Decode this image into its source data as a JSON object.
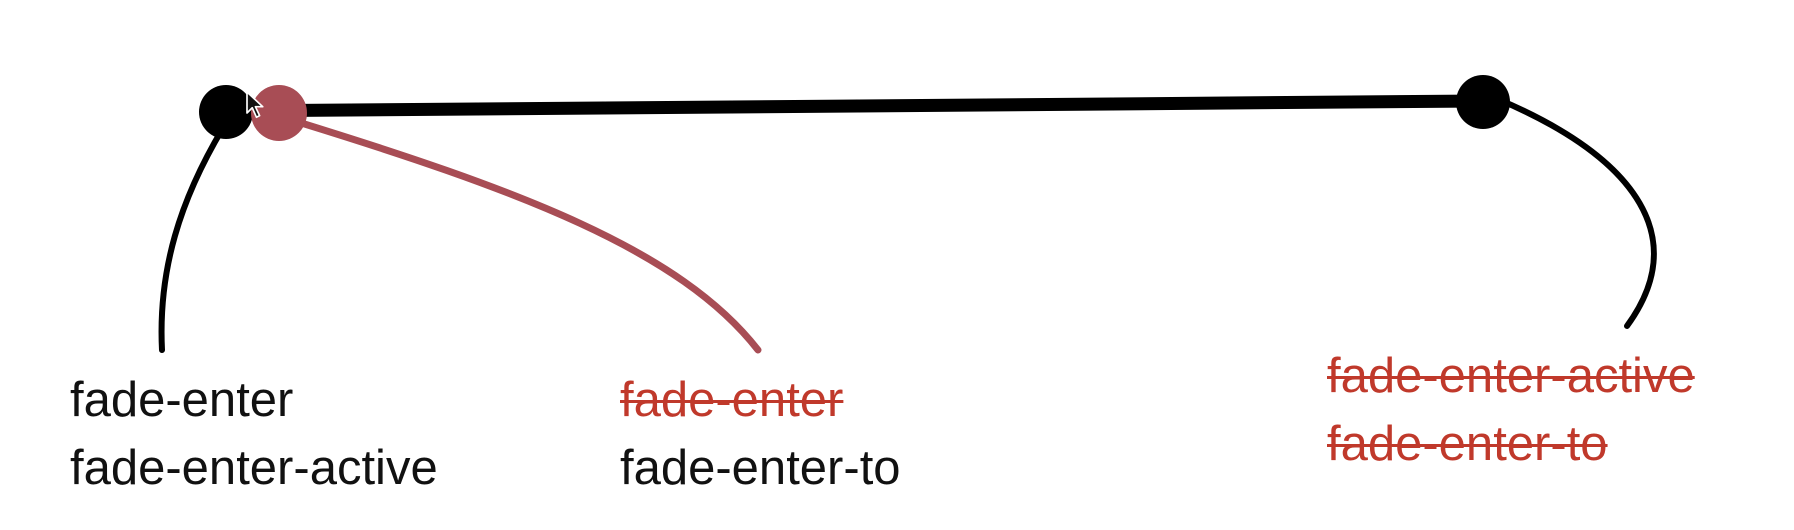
{
  "colors": {
    "black": "#000000",
    "marker_red": "#a84d55",
    "strike_red": "#c0392b",
    "text": "#111111"
  },
  "icons": {
    "cursor": "mouse-pointer-icon"
  },
  "labels": {
    "start": [
      {
        "text": "fade-enter",
        "struck": false
      },
      {
        "text": "fade-enter-active",
        "struck": false
      }
    ],
    "middle": [
      {
        "text": "fade-enter",
        "struck": true
      },
      {
        "text": "fade-enter-to",
        "struck": false
      }
    ],
    "end": [
      {
        "text": "fade-enter-active",
        "struck": true
      },
      {
        "text": "fade-enter-to",
        "struck": true
      }
    ]
  }
}
